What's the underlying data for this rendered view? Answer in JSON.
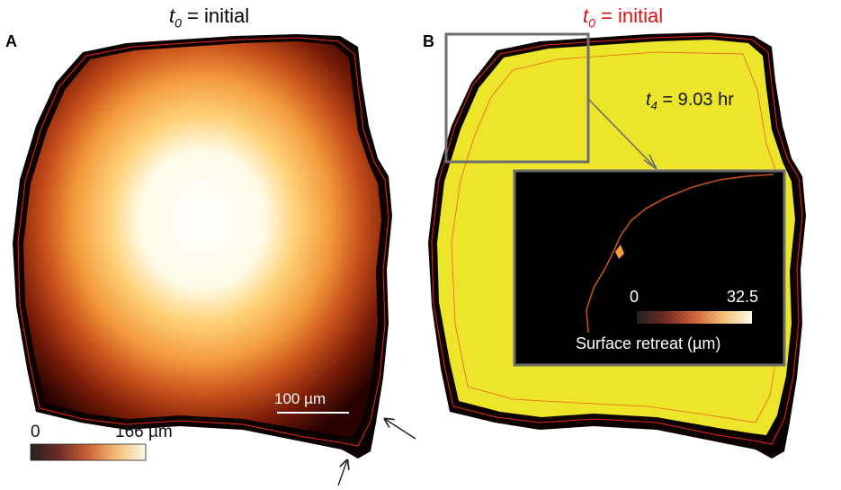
{
  "panelA": {
    "letter": "A",
    "title_var": "t",
    "title_sub": "0",
    "title_rest": " = initial",
    "scale_bar_label": "100 µm",
    "colorbar": {
      "min": "0",
      "max": "166 µm"
    }
  },
  "panelB": {
    "letter": "B",
    "title_var": "t",
    "title_sub": "0",
    "title_rest": " = initial",
    "title_color": "#e01010",
    "time_label_var": "t",
    "time_label_sub": "4",
    "time_label_rest": " = 9.03 hr",
    "inset": {
      "colorbar": {
        "min": "0",
        "max": "32.5"
      },
      "caption": "Surface retreat (µm)"
    }
  },
  "colors": {
    "grain_yellow": "#ece52a",
    "outline_red": "#e8261c",
    "inset_frame": "#6e6e6e",
    "heatmap_hot": "#fffaf0",
    "heatmap_dark": "#3a0400"
  }
}
